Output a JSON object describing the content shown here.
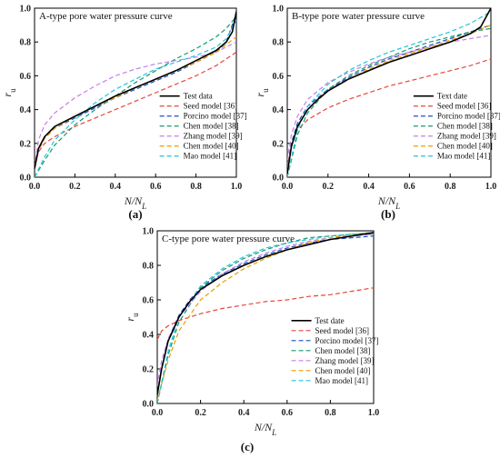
{
  "chart_data": [
    {
      "type": "line",
      "panel_label": "(a)",
      "title": "A-type pore water pressure curve",
      "xlabel": "N/N_L",
      "ylabel": "r_u",
      "xlim": [
        0,
        1
      ],
      "ylim": [
        0,
        1
      ],
      "xticks": [
        "0.0",
        "0.2",
        "0.4",
        "0.6",
        "0.8",
        "1.0"
      ],
      "yticks": [
        "0.0",
        "0.2",
        "0.4",
        "0.6",
        "0.8",
        "1.0"
      ],
      "legend_position": "lower-right",
      "series": [
        {
          "name": "Test data",
          "color": "#000000",
          "dash": false,
          "x": [
            0,
            0.02,
            0.05,
            0.1,
            0.2,
            0.3,
            0.4,
            0.5,
            0.6,
            0.7,
            0.8,
            0.9,
            0.95,
            0.98,
            1.0
          ],
          "y": [
            0.05,
            0.17,
            0.24,
            0.3,
            0.36,
            0.42,
            0.48,
            0.53,
            0.58,
            0.63,
            0.69,
            0.75,
            0.8,
            0.86,
            0.98
          ]
        },
        {
          "name": "Seed model [36]",
          "color": "#e8453c",
          "dash": true,
          "x": [
            0,
            0.02,
            0.05,
            0.1,
            0.2,
            0.3,
            0.4,
            0.5,
            0.6,
            0.7,
            0.8,
            0.9,
            1.0
          ],
          "y": [
            0.07,
            0.15,
            0.2,
            0.24,
            0.3,
            0.35,
            0.4,
            0.45,
            0.5,
            0.55,
            0.6,
            0.66,
            0.74
          ]
        },
        {
          "name": "Porcino model [37]",
          "color": "#1f4fc4",
          "dash": true,
          "x": [
            0,
            0.02,
            0.05,
            0.1,
            0.2,
            0.3,
            0.4,
            0.5,
            0.6,
            0.7,
            0.8,
            0.9,
            0.95,
            1.0
          ],
          "y": [
            0.05,
            0.16,
            0.23,
            0.29,
            0.35,
            0.41,
            0.47,
            0.52,
            0.57,
            0.62,
            0.68,
            0.74,
            0.8,
            0.97
          ]
        },
        {
          "name": "Chen model [38]",
          "color": "#159a6e",
          "dash": true,
          "x": [
            0,
            0.05,
            0.1,
            0.2,
            0.3,
            0.4,
            0.5,
            0.6,
            0.7,
            0.8,
            0.9,
            0.95,
            1.0
          ],
          "y": [
            0,
            0.1,
            0.19,
            0.31,
            0.4,
            0.48,
            0.56,
            0.63,
            0.7,
            0.76,
            0.83,
            0.88,
            0.95
          ]
        },
        {
          "name": "Zhang model [39]",
          "color": "#c77ee8",
          "dash": true,
          "x": [
            0,
            0.02,
            0.05,
            0.1,
            0.2,
            0.3,
            0.4,
            0.5,
            0.6,
            0.7,
            0.8,
            0.9,
            1.0
          ],
          "y": [
            0.06,
            0.22,
            0.31,
            0.38,
            0.47,
            0.54,
            0.6,
            0.64,
            0.67,
            0.69,
            0.71,
            0.74,
            0.8
          ]
        },
        {
          "name": "Chen model [40]",
          "color": "#e5a100",
          "dash": true,
          "x": [
            0,
            0.02,
            0.05,
            0.1,
            0.2,
            0.3,
            0.4,
            0.5,
            0.6,
            0.7,
            0.8,
            0.9,
            1.0
          ],
          "y": [
            0.05,
            0.16,
            0.23,
            0.29,
            0.36,
            0.42,
            0.47,
            0.53,
            0.58,
            0.63,
            0.68,
            0.74,
            0.83
          ]
        },
        {
          "name": "Mao model [41]",
          "color": "#22c5d8",
          "dash": true,
          "x": [
            0,
            0.05,
            0.1,
            0.2,
            0.3,
            0.4,
            0.5,
            0.6,
            0.7,
            0.8,
            0.9,
            0.95,
            1.0
          ],
          "y": [
            0,
            0.12,
            0.22,
            0.34,
            0.44,
            0.52,
            0.58,
            0.64,
            0.68,
            0.72,
            0.77,
            0.82,
            0.93
          ]
        }
      ]
    },
    {
      "type": "line",
      "panel_label": "(b)",
      "title": "B-type pore water pressure curve",
      "xlabel": "N/N_L",
      "ylabel": "r_u",
      "xlim": [
        0,
        1
      ],
      "ylim": [
        0,
        1
      ],
      "xticks": [
        "0.0",
        "0.2",
        "0.4",
        "0.6",
        "0.8",
        "1.0"
      ],
      "yticks": [
        "0.0",
        "0.2",
        "0.4",
        "0.6",
        "0.8",
        "1.0"
      ],
      "legend_position": "lower-right",
      "series": [
        {
          "name": "Text date",
          "color": "#000000",
          "dash": false,
          "x": [
            0,
            0.02,
            0.05,
            0.1,
            0.15,
            0.2,
            0.3,
            0.4,
            0.5,
            0.6,
            0.7,
            0.8,
            0.9,
            0.95,
            1.0
          ],
          "y": [
            0.02,
            0.18,
            0.3,
            0.4,
            0.46,
            0.51,
            0.58,
            0.63,
            0.68,
            0.72,
            0.76,
            0.8,
            0.85,
            0.89,
            1.0
          ]
        },
        {
          "name": "Seed model [36]",
          "color": "#e8453c",
          "dash": true,
          "x": [
            0,
            0.02,
            0.05,
            0.1,
            0.2,
            0.3,
            0.4,
            0.5,
            0.6,
            0.7,
            0.8,
            0.9,
            1.0
          ],
          "y": [
            0.05,
            0.2,
            0.28,
            0.34,
            0.41,
            0.46,
            0.5,
            0.54,
            0.57,
            0.6,
            0.63,
            0.66,
            0.7
          ]
        },
        {
          "name": "Porcino model [37]",
          "color": "#1f4fc4",
          "dash": true,
          "x": [
            0,
            0.02,
            0.05,
            0.1,
            0.2,
            0.3,
            0.4,
            0.5,
            0.6,
            0.7,
            0.8,
            0.9,
            1.0
          ],
          "y": [
            0.05,
            0.2,
            0.32,
            0.42,
            0.52,
            0.59,
            0.65,
            0.7,
            0.74,
            0.78,
            0.82,
            0.86,
            0.9
          ]
        },
        {
          "name": "Chen model [38]",
          "color": "#159a6e",
          "dash": true,
          "x": [
            0,
            0.05,
            0.1,
            0.2,
            0.3,
            0.4,
            0.5,
            0.6,
            0.7,
            0.8,
            0.9,
            1.0
          ],
          "y": [
            0,
            0.25,
            0.38,
            0.52,
            0.6,
            0.66,
            0.71,
            0.76,
            0.8,
            0.83,
            0.86,
            0.88
          ]
        },
        {
          "name": "Zhang model [39]",
          "color": "#c77ee8",
          "dash": true,
          "x": [
            0,
            0.02,
            0.05,
            0.1,
            0.2,
            0.3,
            0.4,
            0.5,
            0.6,
            0.7,
            0.8,
            0.9,
            1.0
          ],
          "y": [
            0.1,
            0.25,
            0.36,
            0.46,
            0.56,
            0.62,
            0.67,
            0.71,
            0.74,
            0.77,
            0.8,
            0.82,
            0.84
          ]
        },
        {
          "name": "Chen model [40]",
          "color": "#e5a100",
          "dash": true,
          "x": [
            0,
            0.02,
            0.05,
            0.1,
            0.2,
            0.3,
            0.4,
            0.5,
            0.6,
            0.7,
            0.8,
            0.9,
            1.0
          ],
          "y": [
            0.05,
            0.18,
            0.3,
            0.4,
            0.51,
            0.58,
            0.64,
            0.69,
            0.73,
            0.77,
            0.81,
            0.85,
            0.9
          ]
        },
        {
          "name": "Mao model [41]",
          "color": "#22c5d8",
          "dash": true,
          "x": [
            0,
            0.05,
            0.1,
            0.2,
            0.3,
            0.4,
            0.5,
            0.6,
            0.7,
            0.8,
            0.9,
            1.0
          ],
          "y": [
            0,
            0.28,
            0.42,
            0.55,
            0.63,
            0.69,
            0.74,
            0.78,
            0.82,
            0.86,
            0.91,
            0.98
          ]
        }
      ]
    },
    {
      "type": "line",
      "panel_label": "(c)",
      "title": "C-type pore water pressure curve",
      "xlabel": "N/N_L",
      "ylabel": "r_u",
      "xlim": [
        0,
        1
      ],
      "ylim": [
        0,
        1
      ],
      "xticks": [
        "0.0",
        "0.2",
        "0.4",
        "0.6",
        "0.8",
        "1.0"
      ],
      "yticks": [
        "0.0",
        "0.2",
        "0.4",
        "0.6",
        "0.8",
        "1.0"
      ],
      "legend_position": "lower-right",
      "series": [
        {
          "name": "Test date",
          "color": "#000000",
          "dash": false,
          "x": [
            0,
            0.02,
            0.05,
            0.1,
            0.15,
            0.2,
            0.3,
            0.4,
            0.5,
            0.6,
            0.7,
            0.8,
            0.9,
            1.0
          ],
          "y": [
            0.05,
            0.2,
            0.36,
            0.5,
            0.59,
            0.66,
            0.74,
            0.8,
            0.85,
            0.89,
            0.92,
            0.95,
            0.97,
            0.99
          ]
        },
        {
          "name": "Seed model [36]",
          "color": "#e8453c",
          "dash": true,
          "x": [
            0,
            0.02,
            0.05,
            0.1,
            0.2,
            0.3,
            0.4,
            0.5,
            0.6,
            0.7,
            0.8,
            0.9,
            1.0
          ],
          "y": [
            0.37,
            0.42,
            0.45,
            0.48,
            0.52,
            0.55,
            0.57,
            0.59,
            0.6,
            0.62,
            0.63,
            0.65,
            0.67
          ]
        },
        {
          "name": "Porcino model [37]",
          "color": "#1f4fc4",
          "dash": true,
          "x": [
            0,
            0.02,
            0.05,
            0.1,
            0.15,
            0.2,
            0.3,
            0.4,
            0.5,
            0.6,
            0.7,
            0.8,
            0.9,
            1.0
          ],
          "y": [
            0.05,
            0.21,
            0.37,
            0.51,
            0.6,
            0.67,
            0.75,
            0.81,
            0.86,
            0.9,
            0.93,
            0.95,
            0.96,
            0.97
          ]
        },
        {
          "name": "Chen model [38]",
          "color": "#159a6e",
          "dash": true,
          "x": [
            0,
            0.05,
            0.1,
            0.2,
            0.3,
            0.4,
            0.5,
            0.6,
            0.7,
            0.8,
            0.9,
            1.0
          ],
          "y": [
            0,
            0.28,
            0.47,
            0.67,
            0.77,
            0.84,
            0.89,
            0.93,
            0.96,
            0.97,
            0.98,
            0.98
          ]
        },
        {
          "name": "Zhang model [39]",
          "color": "#c77ee8",
          "dash": true,
          "x": [
            0,
            0.02,
            0.05,
            0.1,
            0.2,
            0.3,
            0.4,
            0.5,
            0.6,
            0.7,
            0.8,
            0.9,
            1.0
          ],
          "y": [
            0.1,
            0.25,
            0.37,
            0.5,
            0.65,
            0.75,
            0.82,
            0.87,
            0.91,
            0.94,
            0.96,
            0.97,
            0.98
          ]
        },
        {
          "name": "Chen model [40]",
          "color": "#e5a100",
          "dash": true,
          "x": [
            0,
            0.05,
            0.1,
            0.2,
            0.3,
            0.4,
            0.5,
            0.6,
            0.7,
            0.8,
            0.9,
            1.0
          ],
          "y": [
            0.02,
            0.25,
            0.42,
            0.6,
            0.7,
            0.78,
            0.84,
            0.89,
            0.93,
            0.96,
            0.98,
            0.99
          ]
        },
        {
          "name": "Mao model [41]",
          "color": "#22c5d8",
          "dash": true,
          "x": [
            0,
            0.05,
            0.1,
            0.2,
            0.3,
            0.4,
            0.5,
            0.6,
            0.7,
            0.8,
            0.9,
            1.0
          ],
          "y": [
            0,
            0.3,
            0.5,
            0.68,
            0.78,
            0.85,
            0.9,
            0.93,
            0.95,
            0.97,
            0.98,
            0.99
          ]
        }
      ]
    }
  ]
}
